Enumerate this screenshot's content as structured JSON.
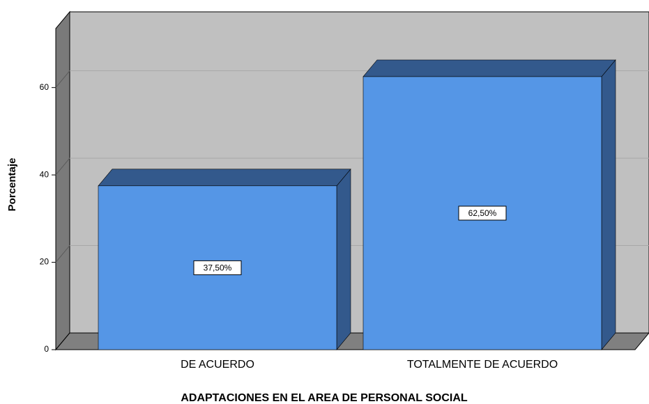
{
  "chart_data": {
    "type": "bar3d",
    "xlabel": "ADAPTACIONES EN EL AREA DE PERSONAL SOCIAL",
    "ylabel": "Porcentaje",
    "categories": [
      "DE ACUERDO",
      "TOTALMENTE DE ACUERDO"
    ],
    "values": [
      37.5,
      62.5
    ],
    "value_labels": [
      "37,50%",
      "62,50%"
    ],
    "color": "#5596e6",
    "ylim": [
      0,
      73.5
    ],
    "yticks": [
      0,
      20,
      40,
      60
    ],
    "grid": true
  }
}
